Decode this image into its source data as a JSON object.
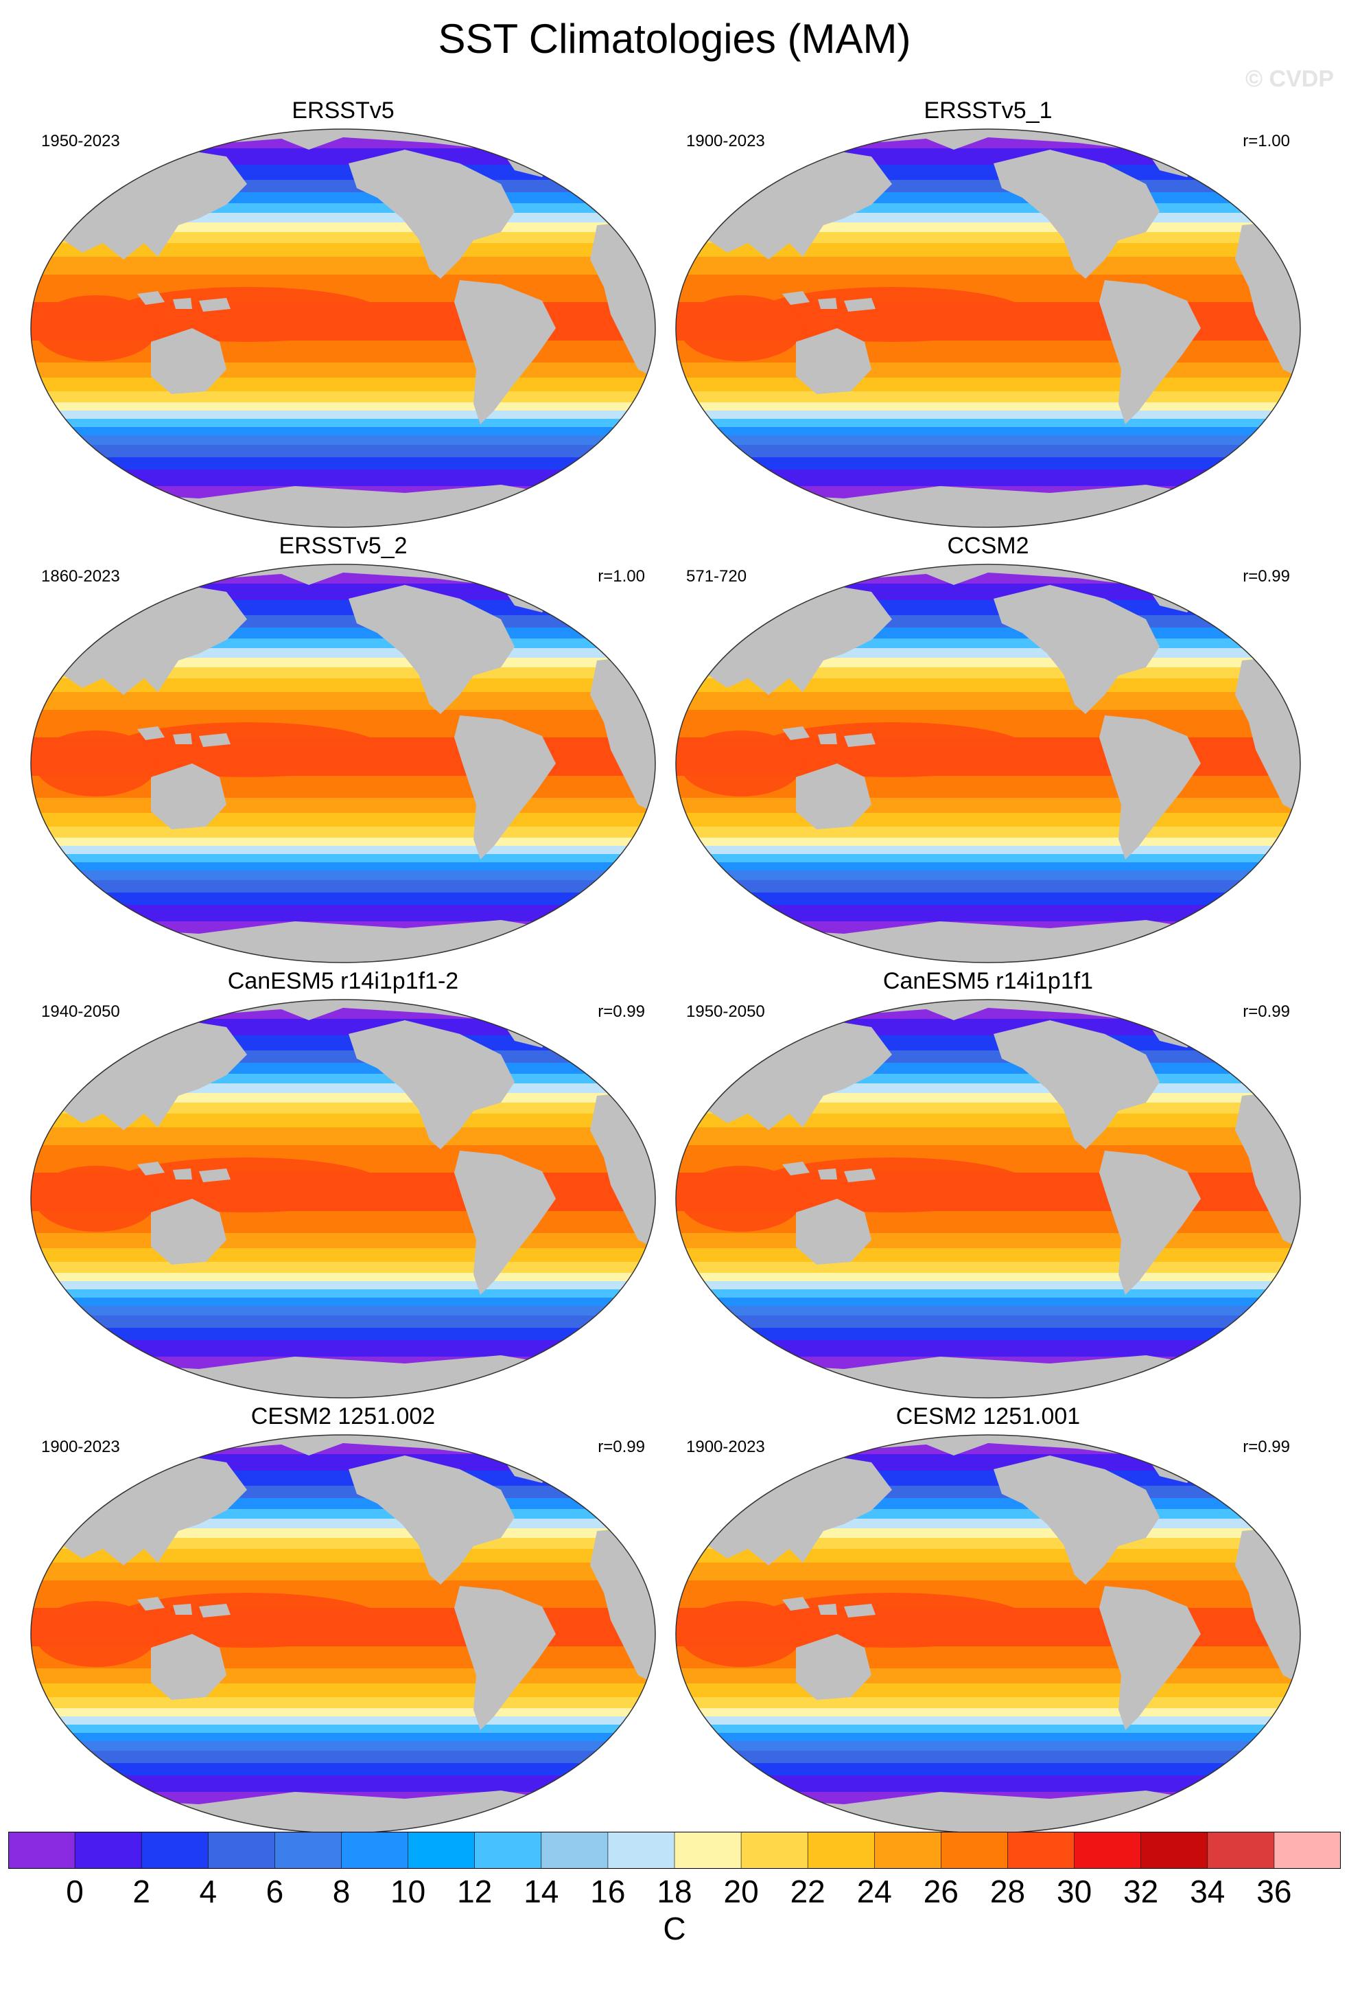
{
  "title": "SST Climatologies (MAM)",
  "watermark": "© CVDP",
  "panels": [
    {
      "title": "ERSSTv5",
      "period": "1950-2023",
      "corr": ""
    },
    {
      "title": "ERSSTv5_1",
      "period": "1900-2023",
      "corr": "r=1.00"
    },
    {
      "title": "ERSSTv5_2",
      "period": "1860-2023",
      "corr": "r=1.00"
    },
    {
      "title": "CCSM2",
      "period": "571-720",
      "corr": "r=0.99"
    },
    {
      "title": "CanESM5 r14i1p1f1-2",
      "period": "1940-2050",
      "corr": "r=0.99"
    },
    {
      "title": "CanESM5 r14i1p1f1",
      "period": "1950-2050",
      "corr": "r=0.99"
    },
    {
      "title": "CESM2 1251.002",
      "period": "1900-2023",
      "corr": "r=0.99"
    },
    {
      "title": "CESM2 1251.001",
      "period": "1900-2023",
      "corr": "r=0.99"
    }
  ],
  "colorbar": {
    "ticks": [
      "0",
      "2",
      "4",
      "6",
      "8",
      "10",
      "12",
      "14",
      "16",
      "18",
      "20",
      "22",
      "24",
      "26",
      "28",
      "30",
      "32",
      "34",
      "36"
    ],
    "unit": "C",
    "colors": [
      "#8a2be2",
      "#4b1cf0",
      "#1e3cf5",
      "#3a67e3",
      "#3c7fec",
      "#1e90ff",
      "#00a8ff",
      "#47c1ff",
      "#92cbee",
      "#bfe3f8",
      "#fff5a8",
      "#ffd84a",
      "#ffc21c",
      "#ffa012",
      "#ff7b08",
      "#ff4d10",
      "#f01414",
      "#c80a0a",
      "#dc3c3c",
      "#ffb0b0"
    ]
  }
}
